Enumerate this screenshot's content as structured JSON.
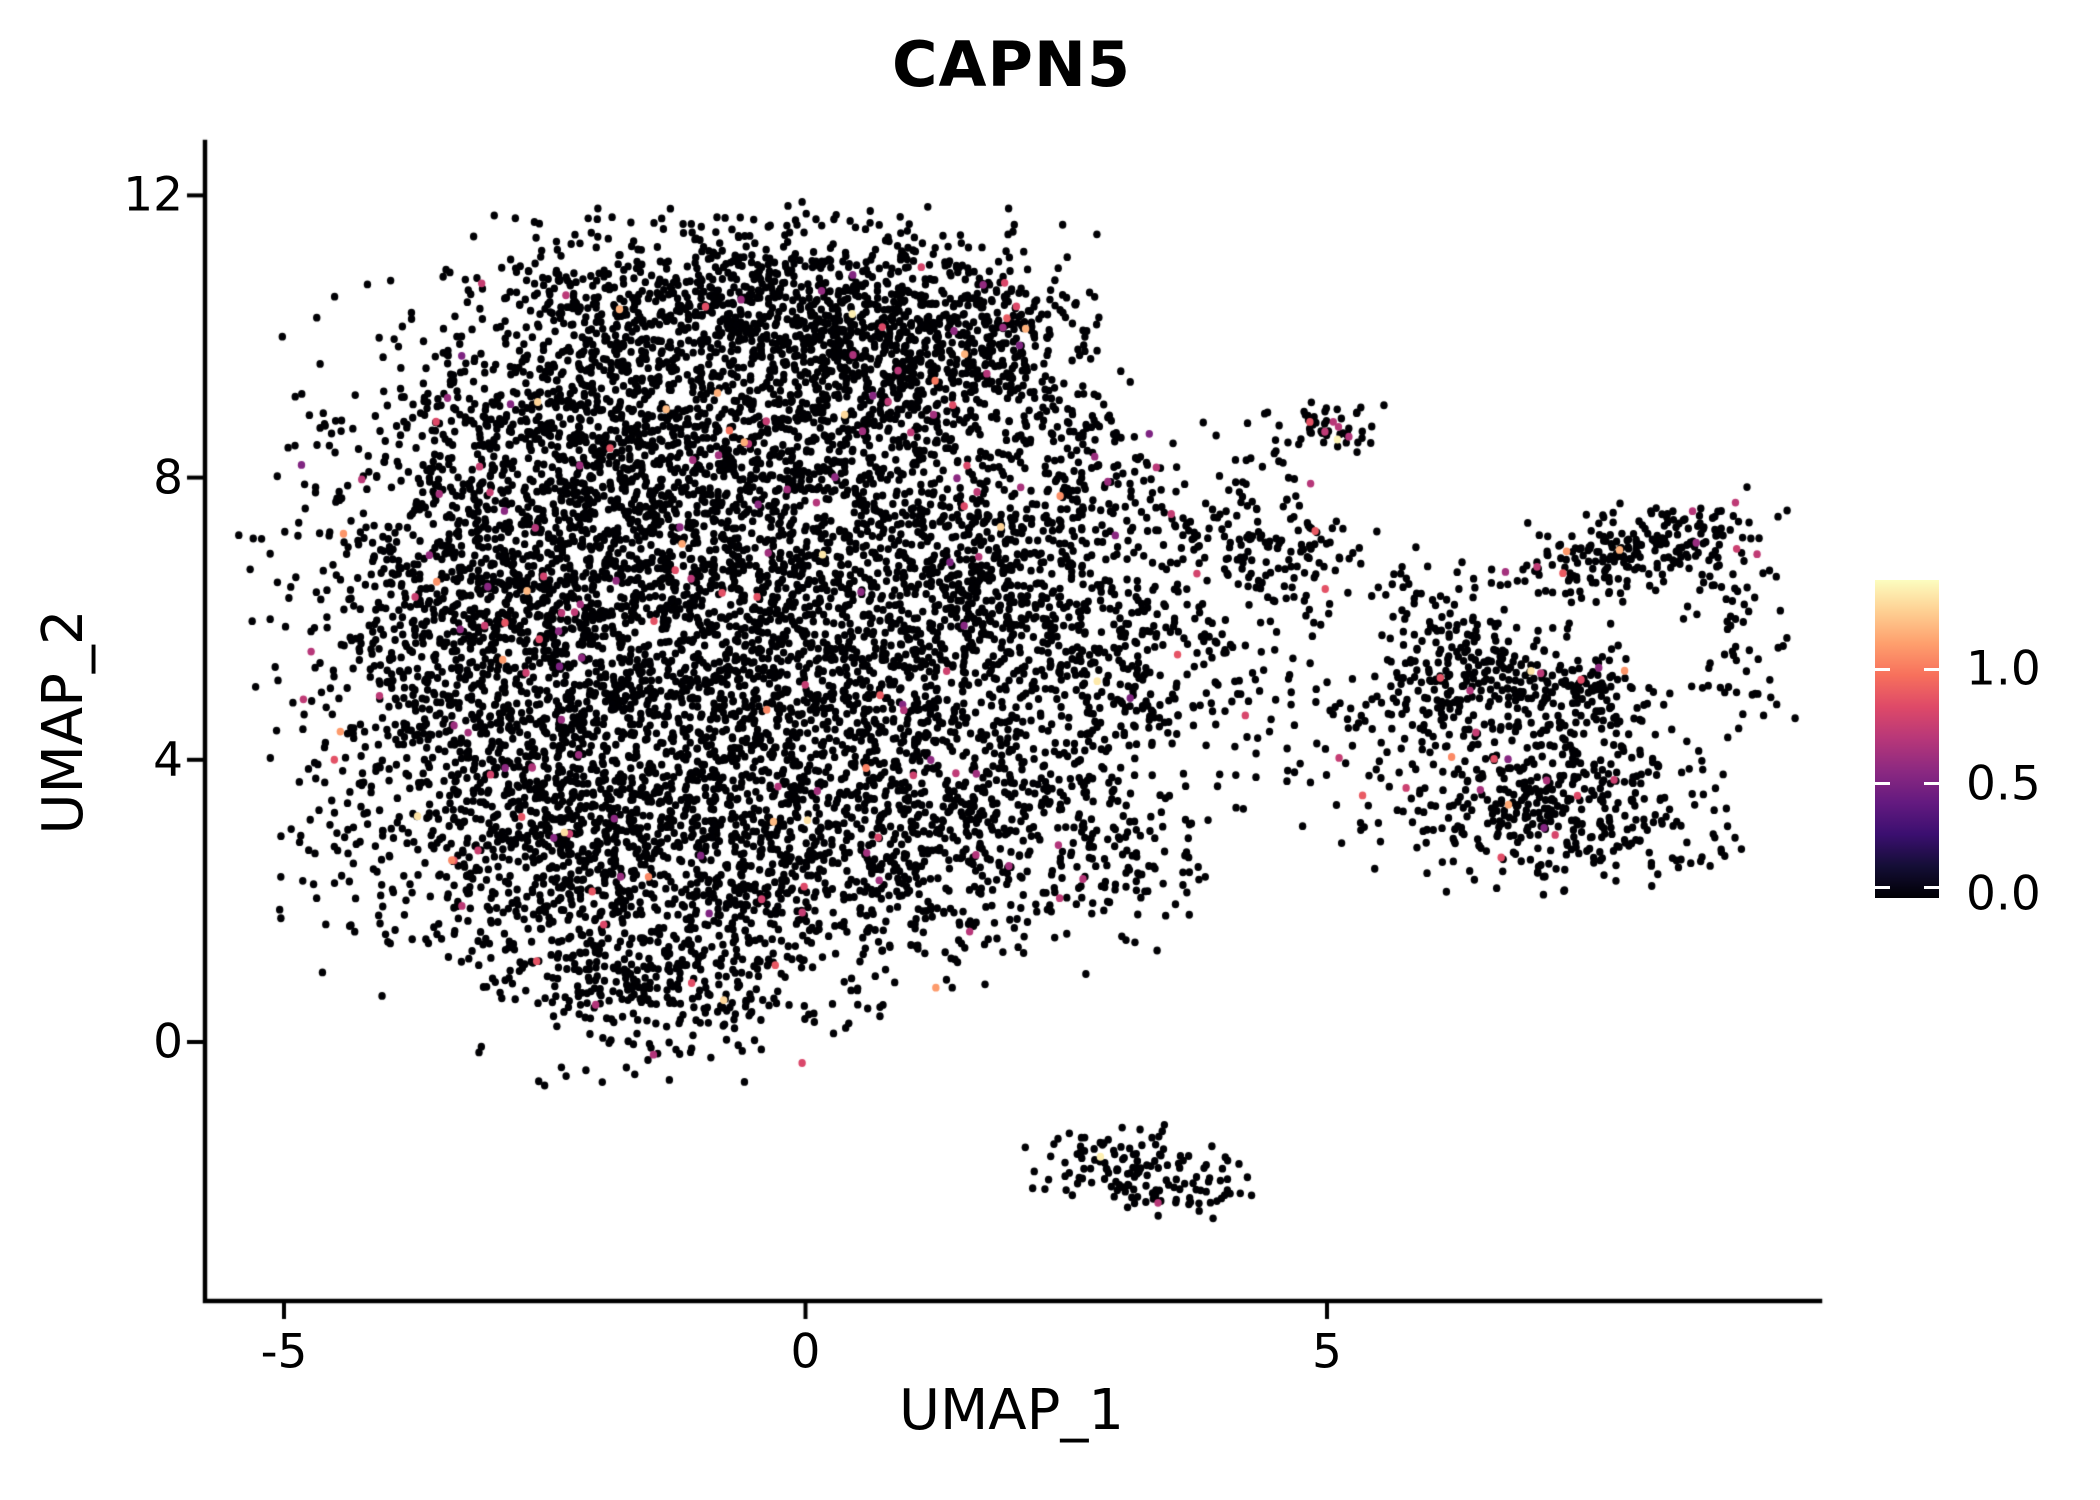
{
  "chart_data": {
    "type": "scatter",
    "title": "CAPN5",
    "xlabel": "UMAP_1",
    "ylabel": "UMAP_2",
    "x_ticks": [
      {
        "value": -5,
        "label": "-5"
      },
      {
        "value": 0,
        "label": "0"
      },
      {
        "value": 5,
        "label": "5"
      }
    ],
    "y_ticks": [
      {
        "value": 0,
        "label": "0"
      },
      {
        "value": 4,
        "label": "4"
      },
      {
        "value": 8,
        "label": "8"
      },
      {
        "value": 12,
        "label": "12"
      }
    ],
    "xlim": [
      -5.75,
      9.75
    ],
    "ylim": [
      -3.65,
      12.8
    ],
    "grid": false,
    "point_color_zero": "#000004",
    "marker_diameter_px": 7.4,
    "seed": 42,
    "colored_fraction": 0.017,
    "colored_value_dist": [
      {
        "p": 0.8,
        "min": 0.5,
        "max": 0.9
      },
      {
        "p": 0.16,
        "min": 0.95,
        "max": 1.2
      },
      {
        "p": 0.04,
        "min": 1.25,
        "max": 1.38
      }
    ],
    "clusters": [
      {
        "name": "dome-top",
        "cx": -0.7,
        "cy": 10.45,
        "sx": 1.35,
        "sy": 0.62,
        "n": 780
      },
      {
        "name": "dome-left",
        "cx": -1.8,
        "cy": 8.75,
        "sx": 1.3,
        "sy": 0.85,
        "n": 950
      },
      {
        "name": "dome-right",
        "cx": 0.55,
        "cy": 9.6,
        "sx": 0.95,
        "sy": 0.85,
        "n": 720,
        "colored": 0.03
      },
      {
        "name": "dome-protrusion",
        "cx": 1.65,
        "cy": 9.75,
        "sx": 0.55,
        "sy": 0.72,
        "n": 250,
        "colored": 0.05
      },
      {
        "name": "upper-left-bulk",
        "cx": -2.3,
        "cy": 6.9,
        "sx": 1.15,
        "sy": 1.0,
        "n": 480
      },
      {
        "name": "upper-center-fill",
        "cx": -0.4,
        "cy": 7.4,
        "sx": 1.25,
        "sy": 0.8,
        "n": 430
      },
      {
        "name": "left-flank",
        "cx": -3.15,
        "cy": 5.6,
        "sx": 0.92,
        "sy": 1.35,
        "n": 800
      },
      {
        "name": "center-left",
        "cx": -1.3,
        "cy": 5.3,
        "sx": 1.15,
        "sy": 1.3,
        "n": 900
      },
      {
        "name": "center-right",
        "cx": 0.7,
        "cy": 5.7,
        "sx": 1.15,
        "sy": 1.25,
        "n": 850
      },
      {
        "name": "right-arm",
        "cx": 2.0,
        "cy": 6.7,
        "sx": 0.65,
        "sy": 0.95,
        "n": 420
      },
      {
        "name": "lower-left",
        "cx": -2.35,
        "cy": 2.9,
        "sx": 1.12,
        "sy": 1.05,
        "n": 820
      },
      {
        "name": "lower-center",
        "cx": -0.1,
        "cy": 2.8,
        "sx": 1.25,
        "sy": 1.05,
        "n": 820
      },
      {
        "name": "bottom-tip",
        "cx": -1.45,
        "cy": 1.0,
        "sx": 0.82,
        "sy": 0.66,
        "n": 340
      },
      {
        "name": "lower-right",
        "cx": 1.6,
        "cy": 3.3,
        "sx": 0.85,
        "sy": 1.05,
        "n": 410
      },
      {
        "name": "lower-right-edge",
        "cx": 3.1,
        "cy": 2.6,
        "sx": 0.4,
        "sy": 0.5,
        "n": 80
      },
      {
        "name": "right-fringe",
        "cx": 3.0,
        "cy": 5.1,
        "sx": 0.55,
        "sy": 0.95,
        "n": 165
      },
      {
        "name": "bridge-upper",
        "cx": 4.6,
        "cy": 6.9,
        "sx": 0.45,
        "sy": 0.45,
        "n": 115,
        "colored": 0.03
      },
      {
        "name": "bridge-mid",
        "cx": 4.0,
        "cy": 5.3,
        "sx": 0.65,
        "sy": 1.0,
        "n": 125,
        "colored": 0.03
      },
      {
        "name": "bridge-high",
        "cx": 3.3,
        "cy": 7.7,
        "sx": 0.45,
        "sy": 0.55,
        "n": 70
      },
      {
        "name": "bridge-top",
        "cx": 2.6,
        "cy": 8.6,
        "sx": 0.35,
        "sy": 0.45,
        "n": 60
      },
      {
        "name": "island-top-core",
        "cx": 5.0,
        "cy": 8.7,
        "sx": 0.22,
        "sy": 0.18,
        "n": 46
      },
      {
        "name": "island-top-tail",
        "cx": 4.45,
        "cy": 8.0,
        "sx": 0.3,
        "sy": 0.42,
        "n": 26
      },
      {
        "name": "ne-elongated",
        "cx": 8.0,
        "cy": 6.95,
        "sx": 0.62,
        "sy": 0.3,
        "n": 235,
        "shear": 0.3,
        "colored": 0.02
      },
      {
        "name": "ne-satellite",
        "cx": 8.95,
        "cy": 6.25,
        "sx": 0.25,
        "sy": 0.35,
        "n": 30
      },
      {
        "name": "right-mid-left",
        "cx": 6.6,
        "cy": 5.15,
        "sx": 0.5,
        "sy": 0.45,
        "n": 185,
        "colored": 0.025
      },
      {
        "name": "right-mid",
        "cx": 7.5,
        "cy": 4.9,
        "sx": 0.38,
        "sy": 0.38,
        "n": 110
      },
      {
        "name": "right-lower",
        "cx": 7.25,
        "cy": 3.45,
        "sx": 0.72,
        "sy": 0.55,
        "n": 390,
        "colored": 0.025
      },
      {
        "name": "right-sparse-left",
        "cx": 5.7,
        "cy": 4.1,
        "sx": 0.5,
        "sy": 0.85,
        "n": 105
      },
      {
        "name": "right-bridge-upper",
        "cx": 5.95,
        "cy": 6.2,
        "sx": 0.4,
        "sy": 0.5,
        "n": 60
      },
      {
        "name": "right-tail",
        "cx": 8.55,
        "cy": 2.6,
        "sx": 0.22,
        "sy": 0.09,
        "n": 12
      },
      {
        "name": "right-edge-lower",
        "cx": 9.0,
        "cy": 5.2,
        "sx": 0.25,
        "sy": 0.4,
        "n": 30
      },
      {
        "name": "bottom-island",
        "cx": 3.1,
        "cy": -1.8,
        "sx": 0.5,
        "sy": 0.3,
        "n": 118
      },
      {
        "name": "bottom-island-east",
        "cx": 3.6,
        "cy": -2.15,
        "sx": 0.28,
        "sy": 0.17,
        "n": 30
      }
    ],
    "highlight_points": [
      {
        "x": 5.06,
        "y": 8.79,
        "v": 0.7
      },
      {
        "x": 5.11,
        "y": 8.72,
        "v": 0.7
      },
      {
        "x": 4.98,
        "y": 8.65,
        "v": 0.72
      },
      {
        "x": 5.21,
        "y": 8.58,
        "v": 0.68
      },
      {
        "x": 5.1,
        "y": 8.54,
        "v": 1.36
      },
      {
        "x": -4.46,
        "y": 4.4,
        "v": 1.1
      },
      {
        "x": 1.25,
        "y": 0.77,
        "v": 1.1
      },
      {
        "x": 3.38,
        "y": -2.28,
        "v": 0.7
      }
    ],
    "colorbar": {
      "vmax": 1.39,
      "tick_values": [
        1.0,
        0.5,
        0.0
      ],
      "tick_labels": [
        "1.0",
        "0.5",
        "0.0"
      ],
      "colormap": "magma",
      "stops": [
        "#000004",
        "#140e36",
        "#3b0f70",
        "#641a80",
        "#8c2981",
        "#b73779",
        "#de4968",
        "#f7705c",
        "#fe9f6d",
        "#fecf92",
        "#fcfdbf"
      ]
    }
  }
}
